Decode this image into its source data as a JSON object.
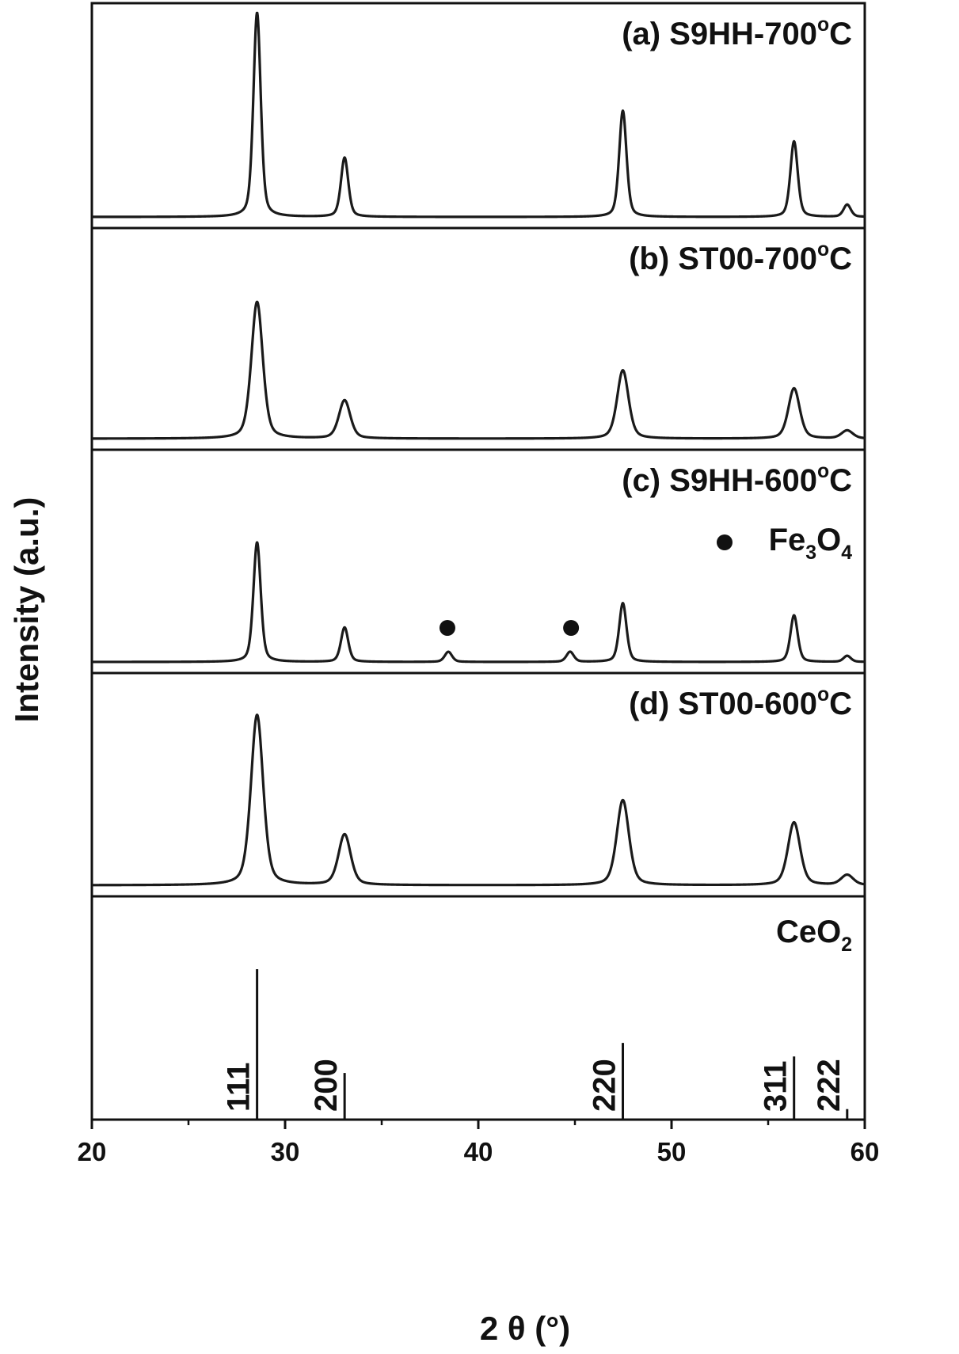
{
  "chart_data": {
    "type": "line",
    "xlabel": "2 θ (°)",
    "ylabel": "Intensity (a.u.)",
    "xlim": [
      20,
      60
    ],
    "xticks": [
      20,
      30,
      40,
      50,
      60
    ],
    "panels": [
      {
        "name": "(a) S9HH-700°C",
        "name_parts": [
          "(a) S9HH-700",
          "o",
          "C"
        ],
        "fwhm": 0.45,
        "peaks": [
          {
            "x": 28.55,
            "y": 1.0
          },
          {
            "x": 33.08,
            "y": 0.29
          },
          {
            "x": 47.48,
            "y": 0.52
          },
          {
            "x": 56.34,
            "y": 0.37
          },
          {
            "x": 59.09,
            "y": 0.06
          }
        ]
      },
      {
        "name": "(b) ST00-700°C",
        "name_parts": [
          "(b) ST00-700",
          "o",
          "C"
        ],
        "fwhm": 0.7,
        "peaks": [
          {
            "x": 28.55,
            "y": 0.68
          },
          {
            "x": 33.08,
            "y": 0.19
          },
          {
            "x": 47.48,
            "y": 0.34
          },
          {
            "x": 56.34,
            "y": 0.25
          },
          {
            "x": 59.09,
            "y": 0.04
          }
        ]
      },
      {
        "name": "(c) S9HH-600°C",
        "name_parts": [
          "(c) S9HH-600",
          "o",
          "C"
        ],
        "fwhm": 0.45,
        "legend": "Fe3O4",
        "legend_parts": [
          "Fe",
          "3",
          "O",
          "4"
        ],
        "impurity_markers": [
          38.4,
          44.8
        ],
        "peaks": [
          {
            "x": 28.55,
            "y": 0.59
          },
          {
            "x": 33.08,
            "y": 0.17
          },
          {
            "x": 38.45,
            "y": 0.05
          },
          {
            "x": 44.75,
            "y": 0.05
          },
          {
            "x": 47.48,
            "y": 0.29
          },
          {
            "x": 56.34,
            "y": 0.23
          },
          {
            "x": 59.09,
            "y": 0.03
          }
        ]
      },
      {
        "name": "(d) ST00-600°C",
        "name_parts": [
          "(d) ST00-600",
          "o",
          "C"
        ],
        "fwhm": 0.75,
        "peaks": [
          {
            "x": 28.55,
            "y": 0.84
          },
          {
            "x": 33.08,
            "y": 0.25
          },
          {
            "x": 47.48,
            "y": 0.42
          },
          {
            "x": 56.34,
            "y": 0.31
          },
          {
            "x": 59.09,
            "y": 0.05
          }
        ]
      }
    ],
    "reference": {
      "name": "CeO2",
      "name_parts": [
        "CeO",
        "2"
      ],
      "lines": [
        {
          "hkl": "111",
          "x": 28.55,
          "y": 1.0
        },
        {
          "hkl": "200",
          "x": 33.08,
          "y": 0.31
        },
        {
          "hkl": "220",
          "x": 47.48,
          "y": 0.51
        },
        {
          "hkl": "311",
          "x": 56.34,
          "y": 0.42
        },
        {
          "hkl": "222",
          "x": 59.09,
          "y": 0.07
        }
      ]
    }
  }
}
